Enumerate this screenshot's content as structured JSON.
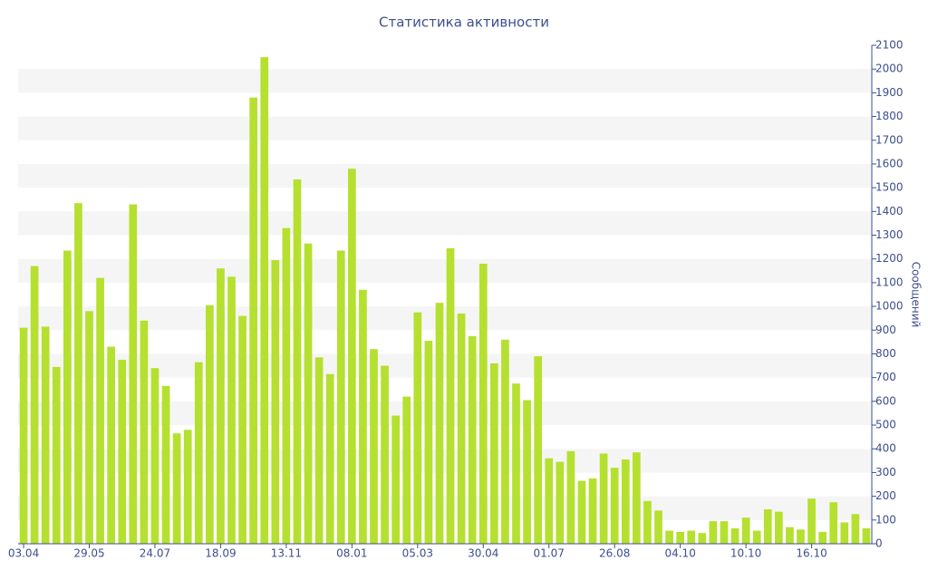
{
  "chart_data": {
    "type": "bar",
    "title": "Статистика активности",
    "y_axis_label": "Сообщений",
    "categories": [
      "03.04",
      null,
      null,
      null,
      null,
      null,
      "29.05",
      null,
      null,
      null,
      null,
      null,
      "24.07",
      null,
      null,
      null,
      null,
      null,
      "18.09",
      null,
      null,
      null,
      null,
      null,
      "13.11",
      null,
      null,
      null,
      null,
      null,
      "08.01",
      null,
      null,
      null,
      null,
      null,
      "05.03",
      null,
      null,
      null,
      null,
      null,
      "30.04",
      null,
      null,
      null,
      null,
      null,
      "01.07",
      null,
      null,
      null,
      null,
      null,
      "26.08",
      null,
      null,
      null,
      null,
      null,
      "04.10",
      null,
      null,
      null,
      null,
      null,
      "10.10",
      null,
      null,
      null,
      null,
      null,
      "16.10",
      null,
      null,
      null,
      null,
      null
    ],
    "values": [
      910,
      1170,
      915,
      745,
      1235,
      1435,
      980,
      1120,
      830,
      775,
      1430,
      940,
      740,
      665,
      465,
      480,
      765,
      1005,
      1160,
      1125,
      960,
      1880,
      2050,
      1195,
      1330,
      1535,
      1265,
      785,
      715,
      1235,
      1580,
      1070,
      820,
      750,
      540,
      620,
      975,
      855,
      1015,
      1245,
      970,
      875,
      1180,
      760,
      860,
      675,
      605,
      790,
      360,
      345,
      390,
      265,
      275,
      380,
      320,
      355,
      385,
      180,
      140,
      55,
      50,
      55,
      45,
      95,
      95,
      65,
      110,
      55,
      145,
      135,
      70,
      60,
      190,
      50,
      175,
      90,
      125,
      65
    ],
    "color": "#b5e030",
    "ylim": [
      0,
      2100
    ],
    "yticks": [
      0,
      100,
      200,
      300,
      400,
      500,
      600,
      700,
      800,
      900,
      1000,
      1100,
      1200,
      1300,
      1400,
      1500,
      1600,
      1700,
      1800,
      1900,
      2000,
      2100
    ],
    "grid": true
  }
}
